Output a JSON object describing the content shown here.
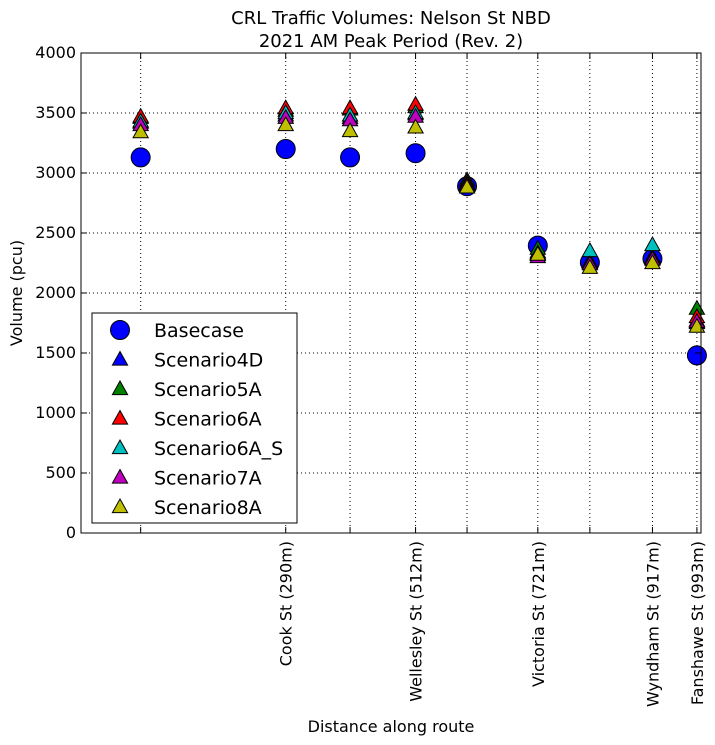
{
  "chart_data": {
    "type": "scatter",
    "title": "CRL Traffic Volumes: Nelson St NBD",
    "subtitle": "2021 AM Peak Period (Rev. 2)",
    "xlabel": "Distance along route",
    "ylabel": "Volume (pcu)",
    "xlim": [
      -60,
      1000
    ],
    "ylim": [
      0,
      4000
    ],
    "yticks": [
      0,
      500,
      1000,
      1500,
      2000,
      2500,
      3000,
      3500,
      4000
    ],
    "x_gridlines": [
      42,
      290,
      400,
      512,
      600,
      721,
      810,
      917,
      993
    ],
    "x_tick_labels": [
      {
        "x": 290,
        "label": "Cook St (290m)"
      },
      {
        "x": 512,
        "label": "Wellesley St (512m)"
      },
      {
        "x": 721,
        "label": "Victoria St (721m)"
      },
      {
        "x": 917,
        "label": "Wyndham St (917m)"
      },
      {
        "x": 993,
        "label": "Fanshawe St (993m)"
      }
    ],
    "x": [
      42,
      290,
      400,
      512,
      600,
      721,
      810,
      917,
      993
    ],
    "grid": true,
    "legend_position": "lower-left",
    "series": [
      {
        "name": "Basecase",
        "marker": "circle",
        "color": "#0000ff",
        "values": [
          3130,
          3200,
          3130,
          3165,
          2890,
          2395,
          2255,
          2285,
          1480
        ]
      },
      {
        "name": "Scenario4D",
        "marker": "triangle",
        "color": "#0000ff",
        "values": [
          3420,
          3480,
          3460,
          3490,
          2910,
          2340,
          2250,
          2280,
          1770
        ]
      },
      {
        "name": "Scenario5A",
        "marker": "triangle",
        "color": "#008000",
        "values": [
          3460,
          3520,
          3530,
          3550,
          2940,
          2370,
          2260,
          2300,
          1870
        ]
      },
      {
        "name": "Scenario6A",
        "marker": "triangle",
        "color": "#ff0000",
        "values": [
          3470,
          3540,
          3540,
          3570,
          2920,
          2320,
          2250,
          2290,
          1800
        ]
      },
      {
        "name": "Scenario6A_S",
        "marker": "triangle",
        "color": "#00bfbf",
        "values": [
          3430,
          3500,
          3480,
          3500,
          2900,
          2330,
          2350,
          2400,
          1750
        ]
      },
      {
        "name": "Scenario7A",
        "marker": "triangle",
        "color": "#bf00bf",
        "values": [
          3400,
          3460,
          3440,
          3470,
          2900,
          2300,
          2240,
          2280,
          1760
        ]
      },
      {
        "name": "Scenario8A",
        "marker": "triangle",
        "color": "#bfbf00",
        "values": [
          3340,
          3400,
          3350,
          3380,
          2880,
          2320,
          2210,
          2250,
          1720
        ]
      }
    ]
  }
}
